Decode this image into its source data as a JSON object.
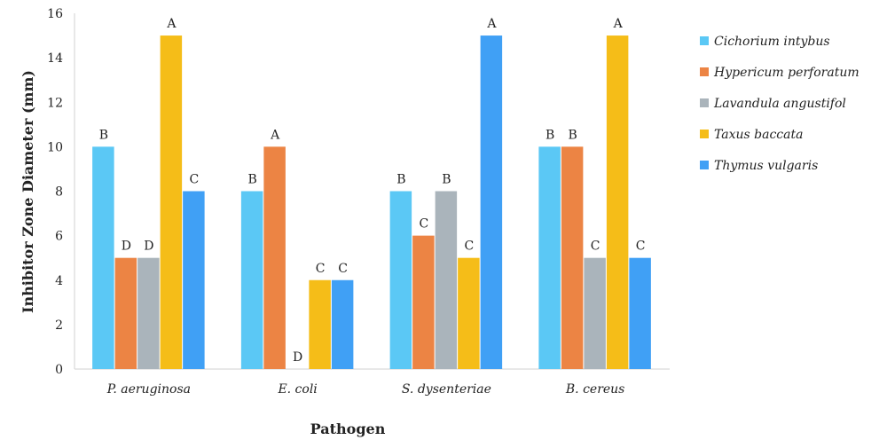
{
  "chart_data": {
    "type": "bar",
    "xlabel": "Pathogen",
    "ylabel": "Inhibitor Zone Diameter (mm)",
    "ylim": [
      0,
      16
    ],
    "yticks": [
      0,
      2,
      4,
      6,
      8,
      10,
      12,
      14,
      16
    ],
    "grid": false,
    "legend_position": "right",
    "categories": [
      "P. aeruginosa",
      "E. coli",
      "S. dysenteriae",
      "B. cereus"
    ],
    "series": [
      {
        "name": "Cichorium intybus",
        "color": "#5bc8f5",
        "values": [
          10,
          8,
          8,
          10
        ],
        "labels": [
          "B",
          "B",
          "B",
          "B"
        ]
      },
      {
        "name": "Hypericum perforatum",
        "color": "#ec8444",
        "values": [
          5,
          10,
          6,
          10
        ],
        "labels": [
          "D",
          "A",
          "C",
          "B"
        ]
      },
      {
        "name": "Lavandula angustifol",
        "color": "#aab4bb",
        "values": [
          5,
          0,
          8,
          5
        ],
        "labels": [
          "D",
          "D",
          "B",
          "C"
        ]
      },
      {
        "name": "Taxus baccata",
        "color": "#f5bd18",
        "values": [
          15,
          4,
          5,
          15
        ],
        "labels": [
          "A",
          "C",
          "C",
          "A"
        ]
      },
      {
        "name": "Thymus vulgaris",
        "color": "#40a0f5",
        "values": [
          8,
          4,
          15,
          5
        ],
        "labels": [
          "C",
          "C",
          "A",
          "C"
        ]
      }
    ]
  }
}
